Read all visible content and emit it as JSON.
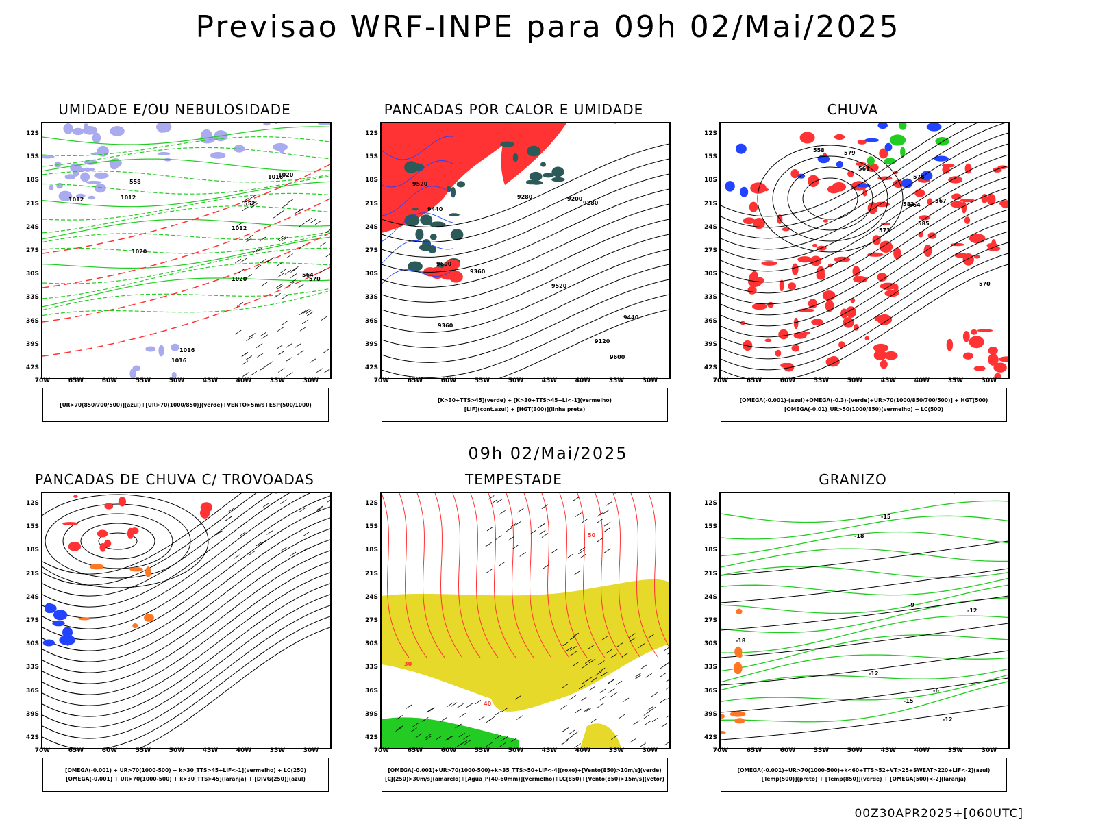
{
  "title": "Previsao WRF-INPE  para 09h 02/Mai/2025",
  "middle_title": "09h 02/Mai/2025",
  "footer": "00Z30APR2025+[060UTC]",
  "axes": {
    "lat_labels": [
      "12S",
      "15S",
      "18S",
      "21S",
      "24S",
      "27S",
      "30S",
      "33S",
      "36S",
      "39S",
      "42S"
    ],
    "lon_labels": [
      "70W",
      "65W",
      "60W",
      "55W",
      "50W",
      "45W",
      "40W",
      "35W",
      "30W"
    ]
  },
  "colors": {
    "green": "#22cc22",
    "red": "#ff3333",
    "blue": "#2244ff",
    "lavender": "#aaaaee",
    "darkteal": "#2b5a58",
    "yellow": "#e6d92a",
    "black": "#000000"
  },
  "panels": [
    {
      "title": "UMIDADE E/OU NEBULOSIDADE",
      "legend": [
        "[UR>70(850/700/500)](azul)+[UR>70(1000/850)](verde)+VENTO>5m/s+ESP(500/1000)"
      ],
      "contour_labels": [
        "1012",
        "1012",
        "1012",
        "1016",
        "1016",
        "1016",
        "1020",
        "1020",
        "1020",
        "570",
        "564",
        "558",
        "552"
      ]
    },
    {
      "title": "PANCADAS POR CALOR E UMIDADE",
      "legend": [
        "[K>30+TTS>45](verde) + [K>30+TTS>45+LI<-1](vermelho)",
        "[LIF](cont.azul) + [HGT(300)](linha preta)"
      ],
      "contour_labels": [
        "9600",
        "9600",
        "9520",
        "9520",
        "9440",
        "9440",
        "9360",
        "9360",
        "9280",
        "9280",
        "9200",
        "9120"
      ]
    },
    {
      "title": "CHUVA",
      "legend": [
        "[OMEGA(-0.001)-(azul)+OMEGA(-0.3)-(verde)+UR>70(1000/850/700/500)] + HGT(500)",
        "[OMEGA(-0.01)_UR>50(1000/850)(vermelho) + LC(500)"
      ],
      "contour_labels": [
        "585",
        "582",
        "579",
        "576",
        "573",
        "570",
        "567",
        "564",
        "561",
        "558"
      ]
    },
    {
      "title": "PANCADAS DE CHUVA C/ TROVOADAS",
      "legend": [
        "[OMEGA(-0.001) + UR>70(1000-500) + k>30_TTS>45+LIF<-1](vermelho) + LC(250)",
        "[OMEGA(-0.001) + UR>70(1000-500) + k>30_TTS>45](laranja) + [DIVG(250)](azul)"
      ],
      "contour_labels": []
    },
    {
      "title": "TEMPESTADE",
      "legend": [
        "[OMEGA(-0.001)+UR>70(1000-500)+k>35_TTS>50+LIF<-4](roxo)+[Vento(850)>10m/s](verde)",
        "[CJ(250)>30m/s](amarelo)+[Agua_P(40-60mm)](vermelho)+LC(850)+[Vento(850)>15m/s](vetor)"
      ],
      "contour_labels": [
        "50",
        "40",
        "30"
      ]
    },
    {
      "title": "GRANIZO",
      "legend": [
        "[OMEGA(-0.001)+UR>70(1000-500)+k<60+TTS>52+VT>25+SWEAT>220+LIF<-2](azul)",
        "[Temp(500)](preto) + [Temp(850)](verde) + [OMEGA(500)<-2](laranja)"
      ],
      "contour_labels": [
        "-12",
        "-12",
        "-12",
        "-15",
        "-15",
        "-18",
        "-18",
        "-9",
        "-6"
      ]
    }
  ]
}
